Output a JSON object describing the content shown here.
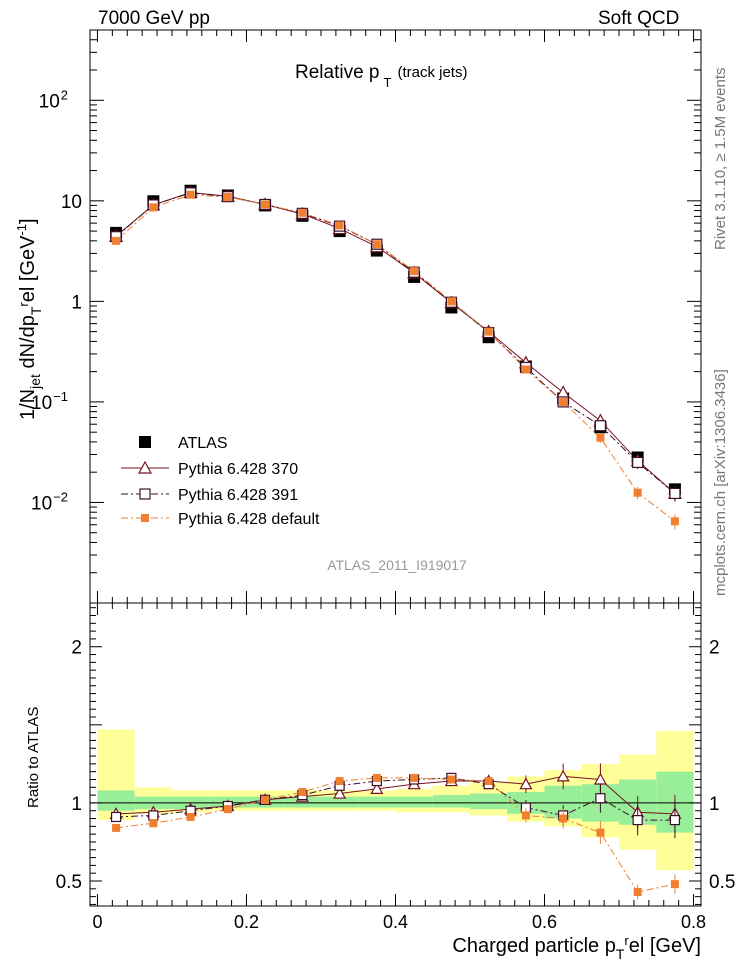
{
  "header": {
    "energy": "7000 GeV pp",
    "process": "Soft QCD"
  },
  "side_labels": {
    "rivet": "Rivet 3.1.10, ≥ 1.5M events",
    "source": "mcplots.cern.ch [arXiv:1306.3436]"
  },
  "chart_data": [
    {
      "type": "scatter",
      "panel": "main",
      "title_main": "Relative p",
      "title_sub": "T",
      "title_suffix": "(track jets)",
      "ylabel": "1/N_jet dN/dp_T^rel [GeV^-1]",
      "yscale": "log",
      "ylim": [
        0.001,
        500
      ],
      "xlim": [
        -0.01,
        0.81
      ],
      "analysis_label": "ATLAS_2011_I919017",
      "legend_position": "bottom-left",
      "x": [
        0.025,
        0.075,
        0.125,
        0.175,
        0.225,
        0.275,
        0.325,
        0.375,
        0.425,
        0.475,
        0.525,
        0.575,
        0.625,
        0.675,
        0.725,
        0.775
      ],
      "series": [
        {
          "name": "ATLAS",
          "style": "data",
          "color": "#000000",
          "values": [
            4.8,
            9.9,
            12.6,
            11.3,
            9.0,
            7.1,
            5.0,
            3.2,
            1.75,
            0.87,
            0.44,
            0.225,
            0.108,
            0.056,
            0.028,
            0.0135
          ]
        },
        {
          "name": "Pythia 6.428 370",
          "style": "solid",
          "marker": "triangle",
          "color": "#7a1020",
          "values": [
            4.45,
            9.1,
            12.1,
            11.1,
            9.2,
            7.4,
            5.3,
            3.5,
            1.92,
            0.97,
            0.5,
            0.245,
            0.124,
            0.065,
            0.026,
            0.0123
          ]
        },
        {
          "name": "Pythia 6.428 391",
          "style": "dashdot",
          "marker": "square-open",
          "color": "#3d0f2b",
          "values": [
            4.4,
            9.1,
            12.0,
            11.0,
            9.2,
            7.5,
            5.6,
            3.7,
            1.95,
            0.98,
            0.49,
            0.22,
            0.1,
            0.058,
            0.025,
            0.0123
          ]
        },
        {
          "name": "Pythia 6.428 default",
          "style": "dashdot",
          "marker": "square-filled",
          "color": "#f07f2f",
          "values": [
            4.0,
            8.6,
            11.5,
            10.9,
            9.2,
            7.6,
            5.7,
            3.7,
            2.0,
            1.0,
            0.5,
            0.21,
            0.1,
            0.044,
            0.0125,
            0.0065
          ]
        }
      ]
    },
    {
      "type": "scatter",
      "panel": "ratio",
      "ylabel": "Ratio to ATLAS",
      "xlabel": "Charged particle p_T^rel [GeV]",
      "ylim": [
        0.34,
        2.28
      ],
      "xlim": [
        -0.01,
        0.81
      ],
      "x": [
        0.025,
        0.075,
        0.125,
        0.175,
        0.225,
        0.275,
        0.325,
        0.375,
        0.425,
        0.475,
        0.525,
        0.575,
        0.625,
        0.675,
        0.725,
        0.775
      ],
      "bands": {
        "green": [
          [
            0.95,
            1.08
          ],
          [
            0.96,
            1.04
          ],
          [
            0.96,
            1.04
          ],
          [
            0.97,
            1.04
          ],
          [
            0.97,
            1.04
          ],
          [
            0.97,
            1.04
          ],
          [
            0.97,
            1.04
          ],
          [
            0.97,
            1.04
          ],
          [
            0.97,
            1.04
          ],
          [
            0.97,
            1.05
          ],
          [
            0.96,
            1.06
          ],
          [
            0.93,
            1.07
          ],
          [
            0.9,
            1.11
          ],
          [
            0.88,
            1.12
          ],
          [
            0.86,
            1.15
          ],
          [
            0.81,
            1.2
          ]
        ],
        "yellow": [
          [
            0.89,
            1.47
          ],
          [
            0.93,
            1.1
          ],
          [
            0.94,
            1.08
          ],
          [
            0.95,
            1.08
          ],
          [
            0.95,
            1.08
          ],
          [
            0.95,
            1.08
          ],
          [
            0.95,
            1.08
          ],
          [
            0.95,
            1.08
          ],
          [
            0.94,
            1.09
          ],
          [
            0.94,
            1.11
          ],
          [
            0.92,
            1.13
          ],
          [
            0.88,
            1.17
          ],
          [
            0.85,
            1.21
          ],
          [
            0.78,
            1.25
          ],
          [
            0.7,
            1.31
          ],
          [
            0.57,
            1.46
          ]
        ]
      },
      "series": [
        {
          "name": "Pythia 6.428 370",
          "color": "#7a1020",
          "values": [
            0.93,
            0.94,
            0.96,
            0.98,
            1.02,
            1.04,
            1.06,
            1.09,
            1.12,
            1.14,
            1.14,
            1.12,
            1.17,
            1.15,
            0.94,
            0.93
          ]
        },
        {
          "name": "Pythia 6.428 391",
          "color": "#3d0f2b",
          "values": [
            0.91,
            0.92,
            0.95,
            0.98,
            1.02,
            1.05,
            1.11,
            1.14,
            1.15,
            1.16,
            1.12,
            0.97,
            0.92,
            1.03,
            0.89,
            0.89
          ]
        },
        {
          "name": "Pythia 6.428 default",
          "color": "#f07f2f",
          "values": [
            0.84,
            0.87,
            0.91,
            0.96,
            1.02,
            1.07,
            1.14,
            1.16,
            1.16,
            1.15,
            1.14,
            0.92,
            0.9,
            0.81,
            0.43,
            0.48
          ]
        }
      ]
    }
  ]
}
